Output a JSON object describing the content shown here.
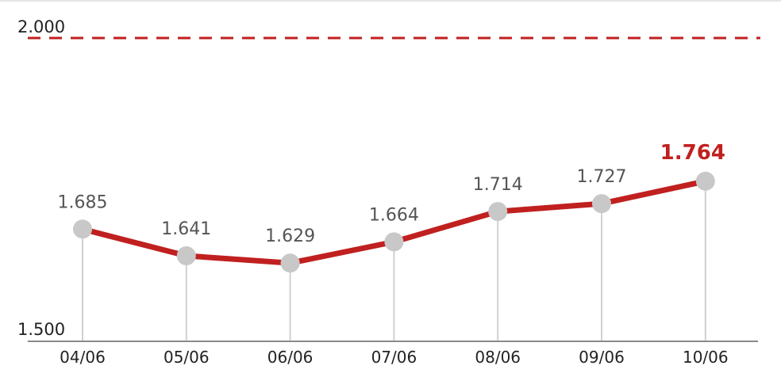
{
  "chart_data": {
    "type": "line",
    "categories": [
      "04/06",
      "05/06",
      "06/06",
      "07/06",
      "08/06",
      "09/06",
      "10/06"
    ],
    "values": [
      1685,
      1641,
      1629,
      1664,
      1714,
      1727,
      1764
    ],
    "value_labels": [
      "1.685",
      "1.641",
      "1.629",
      "1.664",
      "1.714",
      "1.727",
      "1.764"
    ],
    "ylim": [
      1500,
      2000
    ],
    "y_ticks": [
      {
        "value": 1500,
        "label": "1.500"
      },
      {
        "value": 2000,
        "label": "2.000"
      }
    ],
    "reference_line": {
      "value": 2000,
      "label": "2.000",
      "style": "dashed"
    },
    "title": "",
    "xlabel": "",
    "ylabel": "",
    "grid": false,
    "legend": "none",
    "colors": {
      "line": "#c0201f",
      "marker": "#c8c8c8",
      "drop_line": "#d0d0d0",
      "axis": "#8a8a8a",
      "highlight_label": "#c0201f",
      "value_label": "#555555",
      "tick_label": "#222222"
    }
  }
}
